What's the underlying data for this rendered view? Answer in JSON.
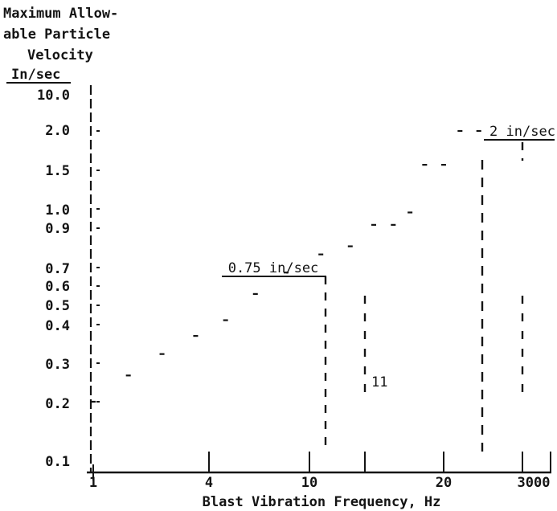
{
  "chart_data": {
    "type": "line",
    "ylabel_lines": [
      "Maximum Allow-",
      "able Particle",
      "Velocity",
      "In/sec"
    ],
    "xlabel": "Blast Vibration Frequency, Hz",
    "y_ticks": [
      "10.0",
      "2.0",
      "1.5",
      "1.0",
      "0.9",
      "0.7",
      "0.6",
      "0.5",
      "0.4",
      "0.3",
      "0.2",
      "0.1"
    ],
    "x_ticks": [
      "1",
      "4",
      "10",
      "20",
      "3000"
    ],
    "annotations": [
      {
        "text": "0.75 in/sec",
        "start_x": 4.5,
        "end_x": 11,
        "level": 0.67
      },
      {
        "text": "2 in/sec",
        "start_x": 26,
        "end_x": 40,
        "level": 1.85
      },
      {
        "text": "11",
        "x": 13.5,
        "level": 0.24
      }
    ],
    "series": [
      {
        "x": [
          1.0,
          1.35,
          1.8,
          2.4,
          3.1,
          4.0,
          5.2,
          7.0,
          9.0,
          11.0,
          13.0,
          15.0,
          17.0,
          20.0,
          23.0,
          27.0
        ],
        "y": [
          0.2,
          0.25,
          0.3,
          0.35,
          0.4,
          0.5,
          0.6,
          0.7,
          0.75,
          0.9,
          0.9,
          1.0,
          1.5,
          1.5,
          2.0,
          2.0
        ]
      }
    ],
    "ylim": [
      0.1,
      10.0
    ],
    "xlim": [
      1,
      3000
    ],
    "grid": false
  }
}
